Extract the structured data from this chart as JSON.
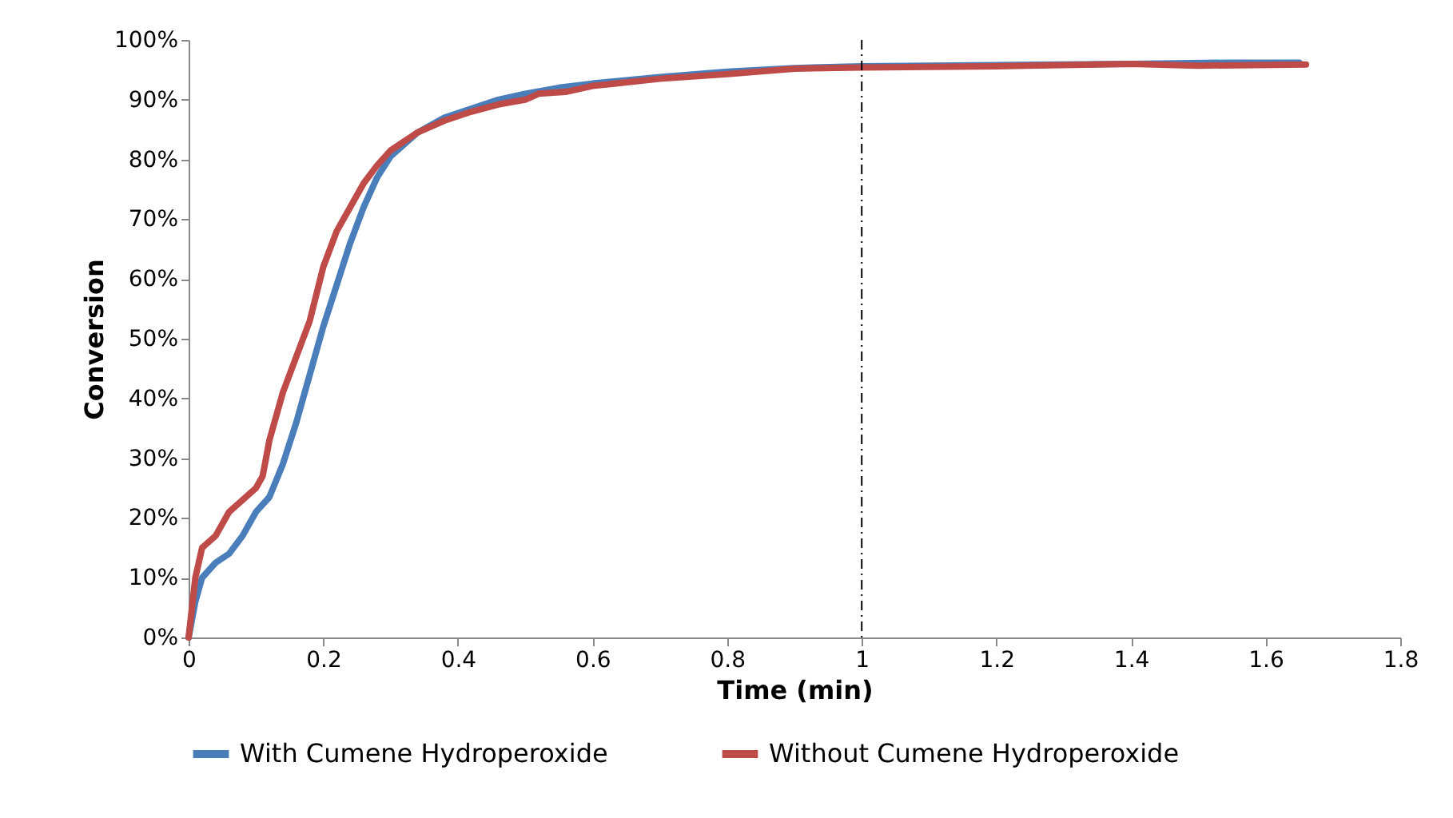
{
  "chart_data": {
    "type": "line",
    "xlabel": "Time (min)",
    "ylabel": "Conversion",
    "xlim": [
      0,
      1.8
    ],
    "xticks": [
      0,
      0.2,
      0.4,
      0.6,
      0.8,
      1,
      1.2,
      1.4,
      1.6,
      1.8
    ],
    "ylim": [
      0,
      100
    ],
    "yticks": [
      {
        "value": 0,
        "label": "0%"
      },
      {
        "value": 10,
        "label": "10%"
      },
      {
        "value": 20,
        "label": "20%"
      },
      {
        "value": 30,
        "label": "30%"
      },
      {
        "value": 40,
        "label": "40%"
      },
      {
        "value": 50,
        "label": "50%"
      },
      {
        "value": 60,
        "label": "60%"
      },
      {
        "value": 70,
        "label": "70%"
      },
      {
        "value": 80,
        "label": "80%"
      },
      {
        "value": 90,
        "label": "90%"
      },
      {
        "value": 100,
        "label": "100%"
      }
    ],
    "grid": false,
    "legend": "bottom",
    "marker": "none",
    "line_style": "solid",
    "ref_lines": [
      {
        "axis": "x",
        "value": 1,
        "label": null,
        "color": "#000000",
        "line_style": "dashdot"
      }
    ],
    "series": [
      {
        "name": "With Cumene Hydroperoxide",
        "color": "#4a7ebb",
        "x": [
          0,
          0.01,
          0.02,
          0.04,
          0.06,
          0.08,
          0.1,
          0.12,
          0.14,
          0.16,
          0.18,
          0.2,
          0.22,
          0.24,
          0.26,
          0.28,
          0.3,
          0.34,
          0.38,
          0.42,
          0.46,
          0.5,
          0.55,
          0.6,
          0.7,
          0.8,
          0.9,
          1.0,
          1.2,
          1.4,
          1.55,
          1.65
        ],
        "values": [
          0,
          6,
          10,
          12.5,
          14,
          17,
          21,
          23.5,
          29,
          36,
          44,
          52,
          59,
          66,
          72,
          77,
          80.5,
          84.5,
          87,
          88.5,
          90,
          91,
          92,
          92.7,
          93.8,
          94.7,
          95.3,
          95.6,
          95.8,
          96,
          96.2,
          96.2
        ]
      },
      {
        "name": "Without Cumene Hydroperoxide",
        "color": "#be4b48",
        "x": [
          0,
          0.01,
          0.02,
          0.04,
          0.06,
          0.08,
          0.1,
          0.11,
          0.12,
          0.14,
          0.16,
          0.18,
          0.2,
          0.22,
          0.24,
          0.26,
          0.28,
          0.3,
          0.34,
          0.38,
          0.42,
          0.46,
          0.5,
          0.52,
          0.56,
          0.6,
          0.7,
          0.8,
          0.9,
          1.0,
          1.2,
          1.4,
          1.5,
          1.66
        ],
        "values": [
          0,
          10,
          15,
          17,
          21,
          23,
          25,
          27,
          33,
          41,
          47,
          53,
          62,
          68,
          72,
          76,
          79,
          81.5,
          84.5,
          86.5,
          88,
          89.2,
          90,
          91,
          91.3,
          92.3,
          93.5,
          94.3,
          95.2,
          95.4,
          95.6,
          96,
          95.7,
          95.9
        ]
      }
    ]
  }
}
